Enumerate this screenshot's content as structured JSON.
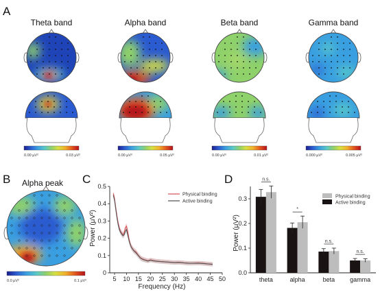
{
  "panels": {
    "a_letter": "A",
    "b_letter": "B",
    "c_letter": "C",
    "d_letter": "D"
  },
  "panel_a": {
    "bands": [
      {
        "title": "Theta band",
        "cb_min": "0.00 μV²",
        "cb_max": "0.03 μV²"
      },
      {
        "title": "Alpha band",
        "cb_min": "0.00 μV²",
        "cb_max": "0.05 μV²"
      },
      {
        "title": "Beta band",
        "cb_min": "0.00 μV²",
        "cb_max": "0.01 μV²"
      },
      {
        "title": "Gamma band",
        "cb_min": "0.000 μV²",
        "cb_max": "0.005 μV²"
      }
    ]
  },
  "panel_b": {
    "title": "Alpha peak",
    "cb_min": "0.0 μV²",
    "cb_max": "0.1 μV²"
  },
  "colormap": [
    "#1b1d8f",
    "#2b5bd0",
    "#3a9fe0",
    "#59c9c8",
    "#8fd16a",
    "#d7e040",
    "#f2b02a",
    "#e2531e",
    "#b4121a"
  ],
  "chart_data": [
    {
      "type": "line",
      "panel": "C",
      "xlabel": "Frequency (Hz)",
      "ylabel": "Power (μV²)",
      "xlim": [
        3,
        50
      ],
      "ylim": [
        0,
        0.5
      ],
      "xticks": [
        5,
        10,
        15,
        20,
        25,
        30,
        35,
        40,
        45,
        50
      ],
      "yticks": [
        0,
        0.1,
        0.2,
        0.3,
        0.4,
        0.5
      ],
      "grid": false,
      "legend_position": "top-right",
      "x": [
        4.5,
        5,
        5.5,
        6,
        6.5,
        7,
        7.5,
        8,
        8.5,
        9,
        9.5,
        10,
        10.5,
        11,
        11.5,
        12,
        13,
        14,
        15,
        16,
        17,
        18,
        19,
        20,
        21,
        22,
        24,
        26,
        28,
        30,
        32,
        34,
        36,
        38,
        40,
        42,
        44,
        46
      ],
      "series": [
        {
          "name": "Physical binding",
          "color": "#d8585c",
          "values": [
            0.46,
            0.43,
            0.38,
            0.33,
            0.29,
            0.26,
            0.24,
            0.23,
            0.22,
            0.23,
            0.26,
            0.27,
            0.24,
            0.2,
            0.17,
            0.15,
            0.13,
            0.12,
            0.1,
            0.085,
            0.078,
            0.074,
            0.07,
            0.075,
            0.072,
            0.069,
            0.066,
            0.064,
            0.062,
            0.06,
            0.061,
            0.058,
            0.056,
            0.056,
            0.057,
            0.055,
            0.052,
            0.05
          ]
        },
        {
          "name": "Active binding",
          "color": "#555555",
          "values": [
            0.45,
            0.42,
            0.37,
            0.32,
            0.28,
            0.25,
            0.235,
            0.225,
            0.215,
            0.22,
            0.24,
            0.25,
            0.22,
            0.19,
            0.165,
            0.148,
            0.128,
            0.115,
            0.098,
            0.083,
            0.076,
            0.072,
            0.068,
            0.073,
            0.07,
            0.068,
            0.065,
            0.063,
            0.061,
            0.059,
            0.06,
            0.057,
            0.055,
            0.055,
            0.056,
            0.054,
            0.051,
            0.049
          ]
        }
      ]
    },
    {
      "type": "bar",
      "panel": "D",
      "ylabel": "Power (μV²)",
      "categories": [
        "theta",
        "alpha",
        "beta",
        "gamma"
      ],
      "ylim": [
        0,
        0.35
      ],
      "yticks": [
        0,
        0.1,
        0.2,
        0.3
      ],
      "grid": false,
      "legend_position": "top-right",
      "series": [
        {
          "name": "Physical binding",
          "color": "#bdbdbd",
          "values": [
            0.327,
            0.205,
            0.088,
            0.05
          ],
          "errors": [
            0.025,
            0.025,
            0.012,
            0.007
          ]
        },
        {
          "name": "Active binding",
          "color": "#1a1313",
          "values": [
            0.308,
            0.182,
            0.086,
            0.05
          ],
          "errors": [
            0.03,
            0.02,
            0.012,
            0.008
          ]
        }
      ],
      "annotations": [
        "n.s.",
        "*",
        "n.s.",
        "n.s."
      ]
    }
  ]
}
